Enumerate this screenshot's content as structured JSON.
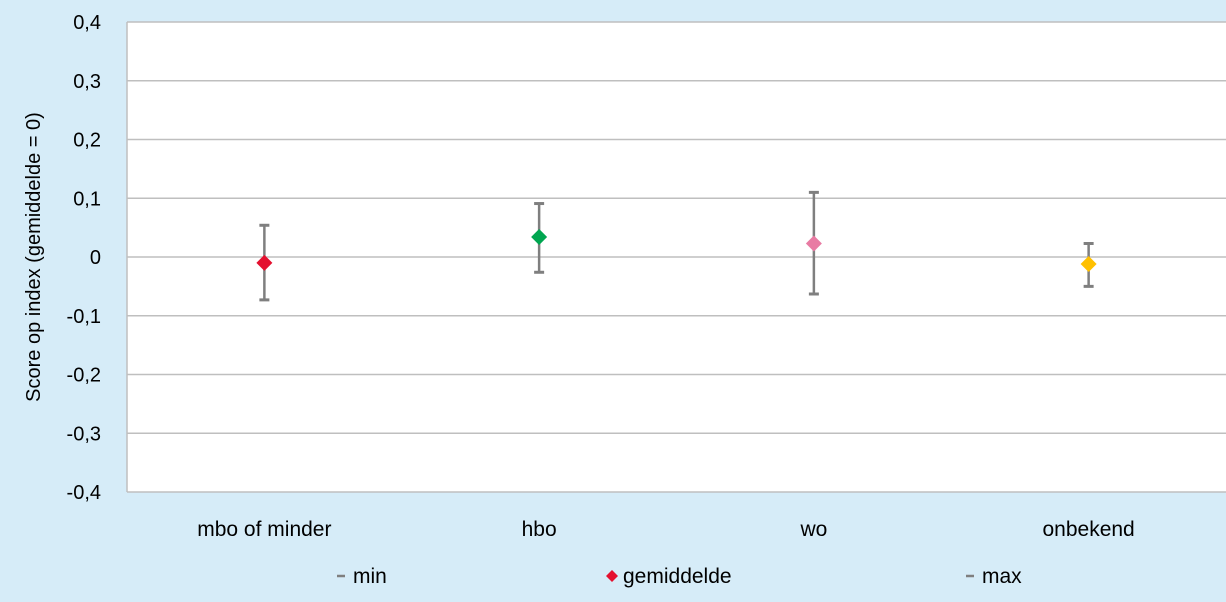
{
  "chart_data": {
    "type": "scatter",
    "title": "",
    "xlabel": "",
    "ylabel": "Score op index (gemiddelde = 0)",
    "ylim": [
      -0.4,
      0.4
    ],
    "yticks": [
      0.4,
      0.3,
      0.2,
      0.1,
      0,
      -0.1,
      -0.2,
      -0.3,
      -0.4
    ],
    "ytick_labels": [
      "0,4",
      "0,3",
      "0,2",
      "0,1",
      "0",
      "-0,1",
      "-0,2",
      "-0,3",
      "-0,4"
    ],
    "grid": true,
    "legend_position": "bottom",
    "categories": [
      "mbo of minder",
      "hbo",
      "wo",
      "onbekend"
    ],
    "series": [
      {
        "name": "min",
        "values": [
          -0.073,
          -0.026,
          -0.063,
          -0.05
        ]
      },
      {
        "name": "gemiddelde",
        "values": [
          -0.01,
          0.034,
          0.023,
          -0.012
        ]
      },
      {
        "name": "max",
        "values": [
          0.054,
          0.091,
          0.11,
          0.023
        ]
      }
    ],
    "point_colors": [
      "#e4102f",
      "#00a650",
      "#e87ba3",
      "#ffc000"
    ],
    "whisker_color": "#7f7f7f",
    "legend": [
      {
        "label": "min",
        "symbol": "dash",
        "color": "#7f7f7f"
      },
      {
        "label": "gemiddelde",
        "symbol": "diamond",
        "color": "#e4102f"
      },
      {
        "label": "max",
        "symbol": "dash",
        "color": "#7f7f7f"
      }
    ]
  }
}
